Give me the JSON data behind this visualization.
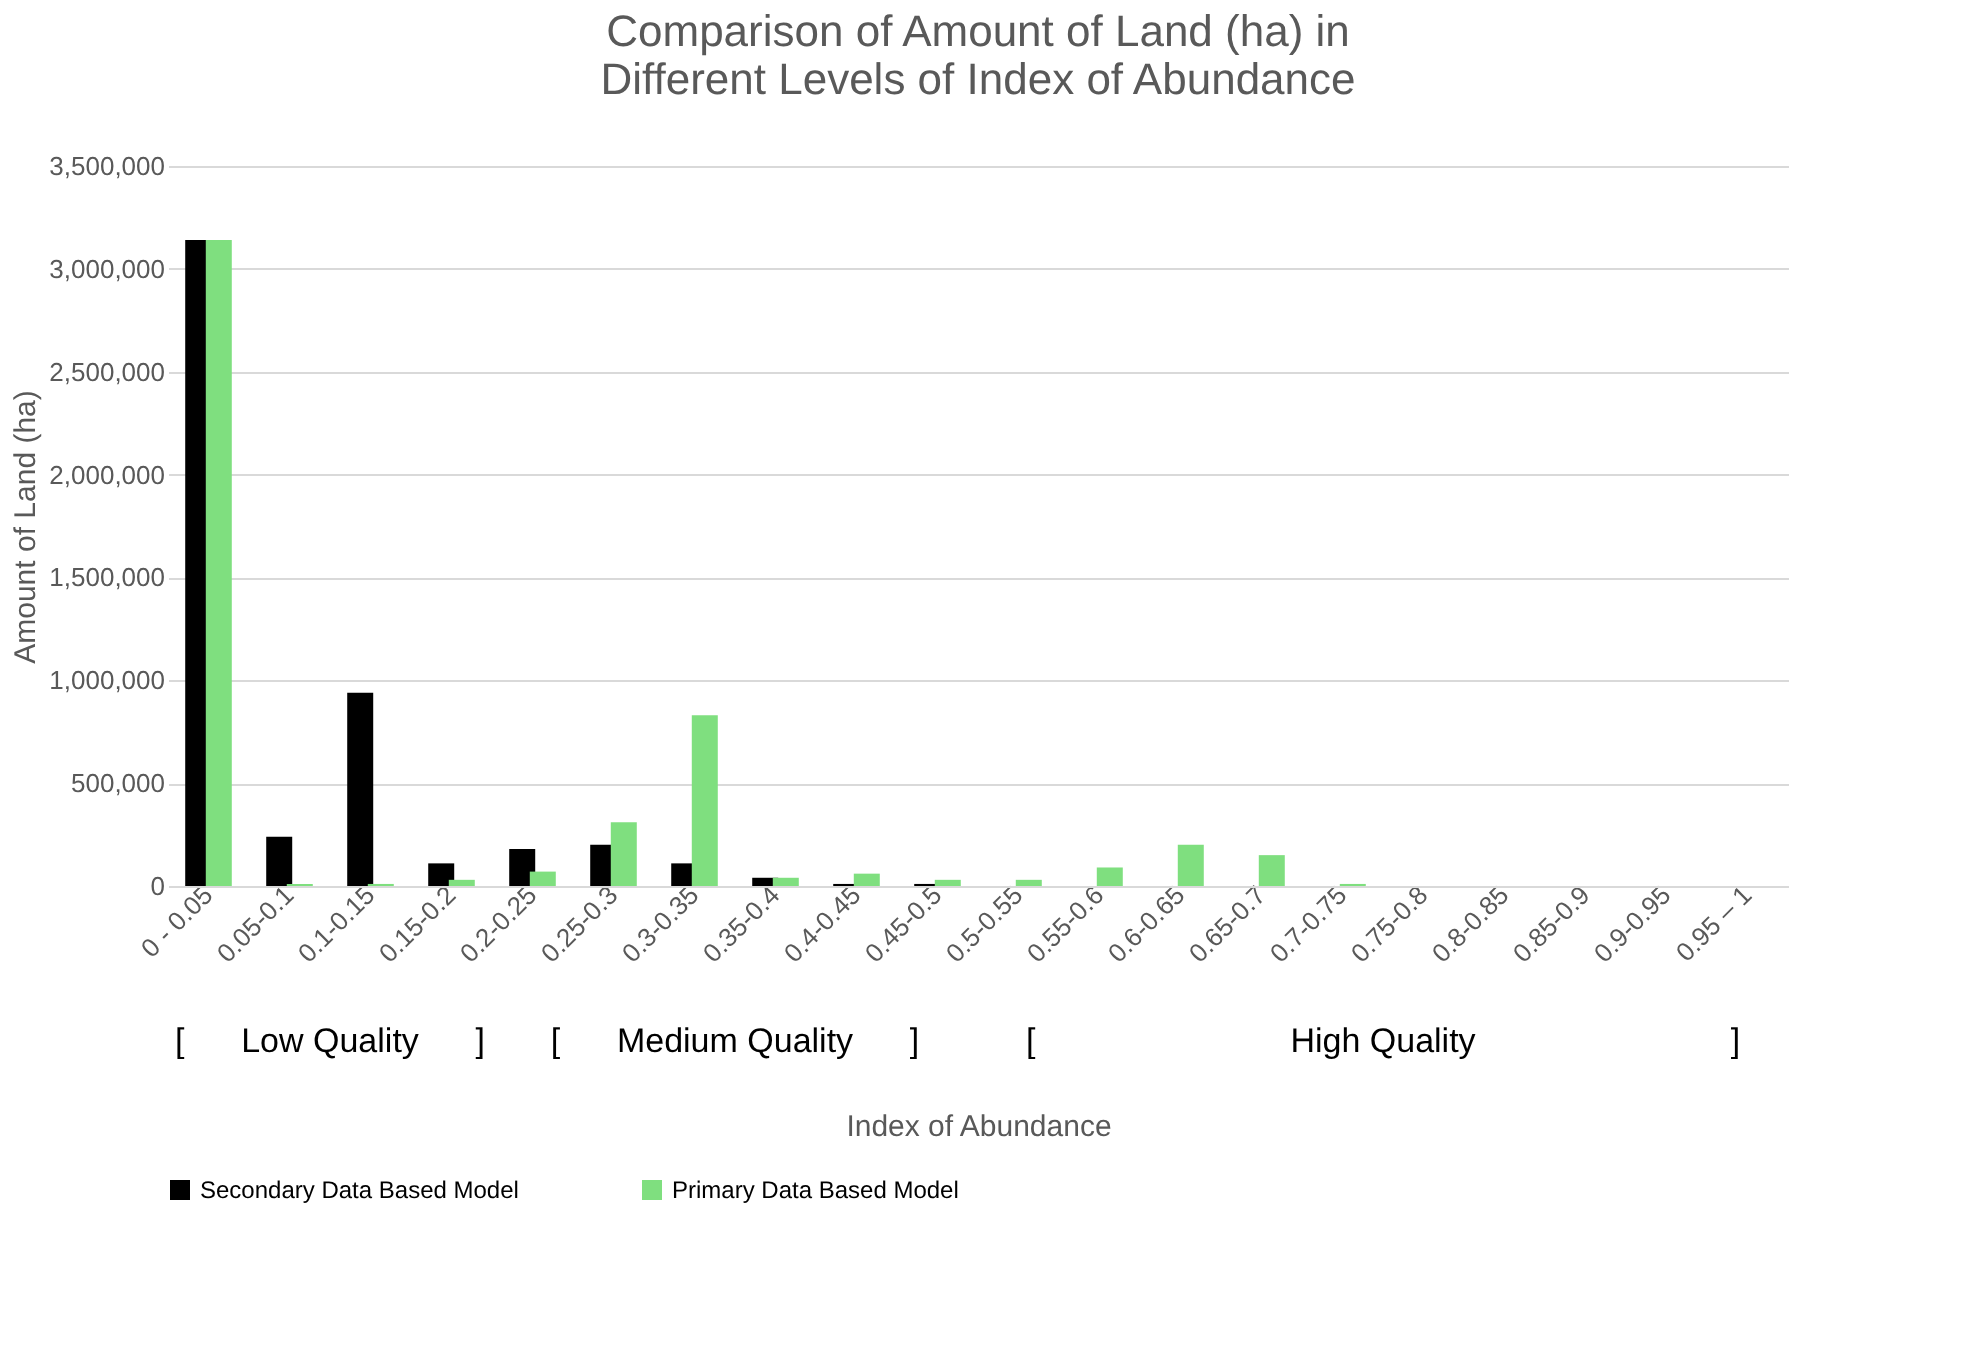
{
  "chart_data": {
    "type": "bar",
    "title": "Comparison of Amount of Land (ha) in\nDifferent Levels of Index of Abundance",
    "xlabel": "Index of Abundance",
    "ylabel": "Amount of Land (ha)",
    "categories": [
      "0 - 0.05",
      "0.05-0.1",
      "0.1-0.15",
      "0.15-0.2",
      "0.2-0.25",
      "0.25-0.3",
      "0.3-0.35",
      "0.35-0.4",
      "0.4-0.45",
      "0.45-0.5",
      "0.5-0.55",
      "0.55-0.6",
      "0.6-0.65",
      "0.65-0.7",
      "0.7-0.75",
      "0.75-0.8",
      "0.8-0.85",
      "0.85-0.9",
      "0.9-0.95",
      "0.95 – 1"
    ],
    "series": [
      {
        "name": "Secondary Data Based Model",
        "color": "#000000",
        "values": [
          3140000,
          240000,
          940000,
          110000,
          180000,
          200000,
          110000,
          40000,
          10000,
          10000,
          0,
          0,
          0,
          0,
          0,
          0,
          0,
          0,
          0,
          0
        ]
      },
      {
        "name": "Primary Data Based Model",
        "color": "#7fdf7f",
        "values": [
          3140000,
          10000,
          10000,
          30000,
          70000,
          310000,
          830000,
          40000,
          60000,
          30000,
          30000,
          90000,
          200000,
          150000,
          10000,
          0,
          0,
          0,
          0,
          0
        ]
      }
    ],
    "ylim": [
      0,
      3500000
    ],
    "yticks": [
      0,
      {
        "value": 500000,
        "label": "500,000"
      },
      {
        "value": 1000000,
        "label": "1,000,000"
      },
      {
        "value": 1500000,
        "label": "1,500,000"
      },
      {
        "value": 2000000,
        "label": "2,000,000"
      },
      {
        "value": 2500000,
        "label": "2,500,000"
      },
      {
        "value": 3000000,
        "label": "3,000,000"
      },
      {
        "value": 3500000,
        "label": "3,500,000"
      }
    ],
    "annotations": [
      "[      Low Quality      ]",
      "[      Medium Quality      ]",
      "[                           High Quality                           ]"
    ],
    "grid": "y",
    "legend": "bottom"
  }
}
